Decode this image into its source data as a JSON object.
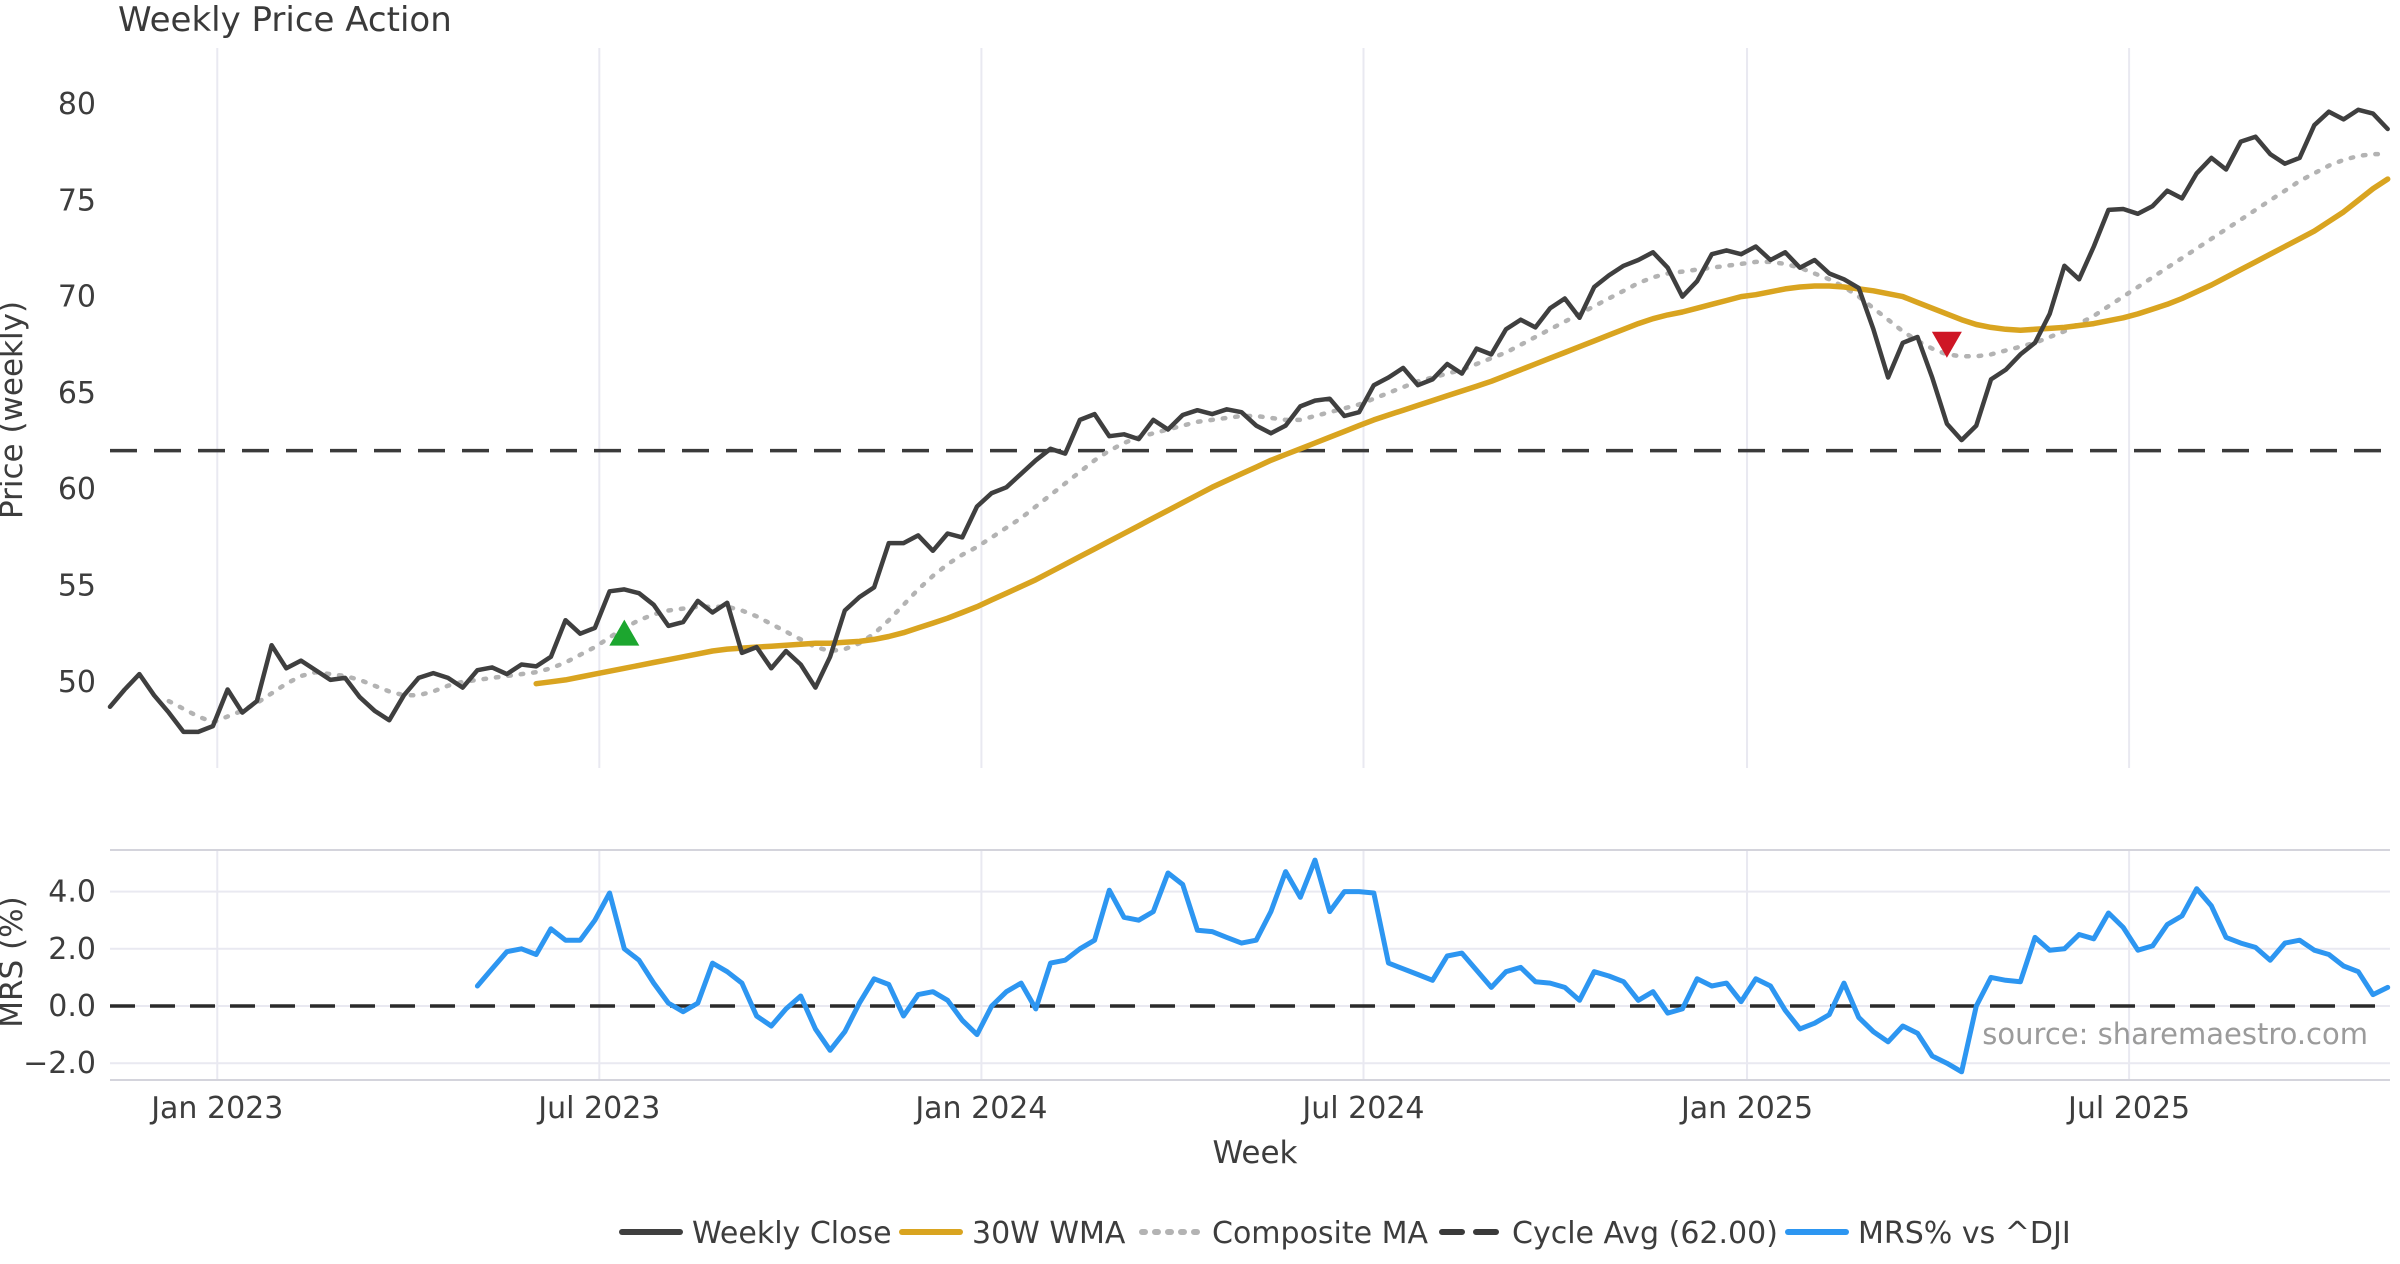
{
  "title": "Weekly Price Action",
  "source_note": "source: sharemaestro.com",
  "axes": {
    "price_label": "Price (weekly)",
    "mrs_label": "MRS (%)",
    "x_label": "Week",
    "x_tick_labels": [
      "Jan 2023",
      "Jul 2023",
      "Jan 2024",
      "Jul 2024",
      "Jan 2025",
      "Jul 2025"
    ],
    "x_tick_weeks": [
      7.3,
      33.3,
      59.3,
      85.3,
      111.4,
      137.4
    ],
    "price_ticks": [
      50,
      55,
      60,
      65,
      70,
      75,
      80
    ],
    "mrs_ticks": [
      -2.0,
      0.0,
      2.0,
      4.0
    ]
  },
  "colors": {
    "close": "#3f3f3f",
    "wma": "#d9a420",
    "composite": "#b3b3b3",
    "cycle": "#3a3a3a",
    "mrs": "#2d96f1",
    "buy_marker": "#1ca62f",
    "sell_marker": "#ce1625",
    "grid": "#e9e9f1",
    "source": "#9b9b9b"
  },
  "legend": [
    {
      "label": "Weekly Close",
      "series": "close",
      "style": "solid"
    },
    {
      "label": "30W WMA",
      "series": "wma",
      "style": "solid"
    },
    {
      "label": "Composite MA",
      "series": "composite",
      "style": "dotted"
    },
    {
      "label": "Cycle Avg (62.00)",
      "series": "cycle",
      "style": "dashed"
    },
    {
      "label": "MRS% vs ^DJI",
      "series": "mrs",
      "style": "solid"
    }
  ],
  "chart_data": [
    {
      "type": "line",
      "panel": "price",
      "title": "Weekly Price Action",
      "ylabel": "Price (weekly)",
      "ylim": [
        46.5,
        81.5
      ],
      "grid": "vertical-only",
      "cycle_avg": 62.0,
      "series": [
        {
          "name": "Weekly Close",
          "start_week": 0,
          "values": [
            48.7,
            49.6,
            50.4,
            49.3,
            48.4,
            47.4,
            47.4,
            47.7,
            49.6,
            48.4,
            49.0,
            51.9,
            50.7,
            51.1,
            50.6,
            50.1,
            50.2,
            49.2,
            48.5,
            48.0,
            49.3,
            50.2,
            50.45,
            50.2,
            49.7,
            50.6,
            50.75,
            50.4,
            50.9,
            50.8,
            51.3,
            53.2,
            52.5,
            52.8,
            54.7,
            54.8,
            54.6,
            54.0,
            52.9,
            53.1,
            54.2,
            53.6,
            54.1,
            51.5,
            51.8,
            50.7,
            51.6,
            50.9,
            49.7,
            51.3,
            53.7,
            54.4,
            54.9,
            57.2,
            57.2,
            57.6,
            56.8,
            57.7,
            57.5,
            59.1,
            59.8,
            60.1,
            60.8,
            61.5,
            62.1,
            61.85,
            63.6,
            63.9,
            62.75,
            62.85,
            62.6,
            63.6,
            63.1,
            63.85,
            64.1,
            63.9,
            64.15,
            64.0,
            63.3,
            62.9,
            63.3,
            64.3,
            64.6,
            64.7,
            63.8,
            64.0,
            65.4,
            65.8,
            66.3,
            65.4,
            65.7,
            66.5,
            66.0,
            67.3,
            67.0,
            68.3,
            68.8,
            68.4,
            69.4,
            69.9,
            68.9,
            70.5,
            71.1,
            71.6,
            71.9,
            72.3,
            71.5,
            70.0,
            70.8,
            72.2,
            72.4,
            72.2,
            72.6,
            71.9,
            72.3,
            71.5,
            71.9,
            71.2,
            70.9,
            70.45,
            68.3,
            65.8,
            67.6,
            67.9,
            65.8,
            63.4,
            62.55,
            63.3,
            65.7,
            66.2,
            67.0,
            67.6,
            69.1,
            71.6,
            70.9,
            72.6,
            74.5,
            74.55,
            74.3,
            74.7,
            75.5,
            75.1,
            76.4,
            77.2,
            76.6,
            78.05,
            78.3,
            77.4,
            76.9,
            77.2,
            78.9,
            79.6,
            79.2,
            79.7,
            79.5,
            78.7
          ]
        },
        {
          "name": "30W WMA",
          "start_week": 29,
          "values": [
            49.9,
            50.0,
            50.1,
            50.25,
            50.4,
            50.55,
            50.7,
            50.85,
            51.0,
            51.15,
            51.3,
            51.45,
            51.6,
            51.7,
            51.75,
            51.8,
            51.85,
            51.9,
            51.95,
            52.0,
            52.0,
            52.05,
            52.1,
            52.2,
            52.35,
            52.55,
            52.8,
            53.05,
            53.3,
            53.6,
            53.9,
            54.25,
            54.6,
            54.95,
            55.3,
            55.7,
            56.1,
            56.5,
            56.9,
            57.3,
            57.7,
            58.1,
            58.5,
            58.9,
            59.3,
            59.7,
            60.1,
            60.45,
            60.8,
            61.15,
            61.5,
            61.8,
            62.1,
            62.4,
            62.7,
            63.0,
            63.3,
            63.6,
            63.85,
            64.1,
            64.35,
            64.6,
            64.85,
            65.1,
            65.35,
            65.6,
            65.9,
            66.2,
            66.5,
            66.8,
            67.1,
            67.4,
            67.7,
            68.0,
            68.3,
            68.6,
            68.85,
            69.05,
            69.2,
            69.4,
            69.6,
            69.8,
            70.0,
            70.1,
            70.25,
            70.4,
            70.5,
            70.55,
            70.55,
            70.5,
            70.4,
            70.3,
            70.15,
            70.0,
            69.7,
            69.4,
            69.1,
            68.8,
            68.55,
            68.4,
            68.3,
            68.25,
            68.3,
            68.35,
            68.4,
            68.5,
            68.6,
            68.75,
            68.9,
            69.1,
            69.35,
            69.6,
            69.9,
            70.25,
            70.6,
            71.0,
            71.4,
            71.8,
            72.2,
            72.6,
            73.0,
            73.4,
            73.9,
            74.4,
            75.0,
            75.6,
            76.1
          ]
        },
        {
          "name": "Composite MA",
          "start_week": 4,
          "values": [
            49.0,
            48.6,
            48.2,
            47.9,
            48.2,
            48.5,
            48.9,
            49.4,
            49.9,
            50.3,
            50.5,
            50.4,
            50.3,
            50.1,
            49.8,
            49.5,
            49.3,
            49.3,
            49.5,
            49.8,
            50.0,
            50.1,
            50.2,
            50.3,
            50.4,
            50.5,
            50.7,
            51.0,
            51.4,
            51.8,
            52.3,
            52.8,
            53.2,
            53.5,
            53.7,
            53.8,
            53.9,
            53.9,
            53.9,
            53.7,
            53.4,
            53.0,
            52.6,
            52.2,
            51.8,
            51.6,
            51.7,
            52.0,
            52.5,
            53.2,
            54.0,
            54.8,
            55.5,
            56.1,
            56.6,
            57.0,
            57.5,
            58.0,
            58.5,
            59.1,
            59.7,
            60.3,
            60.9,
            61.5,
            62.0,
            62.4,
            62.7,
            62.9,
            63.1,
            63.3,
            63.5,
            63.6,
            63.7,
            63.8,
            63.8,
            63.7,
            63.6,
            63.6,
            63.8,
            64.0,
            64.2,
            64.4,
            64.7,
            65.0,
            65.3,
            65.6,
            65.8,
            66.0,
            66.2,
            66.5,
            66.8,
            67.1,
            67.5,
            67.9,
            68.3,
            68.7,
            69.1,
            69.5,
            69.9,
            70.3,
            70.7,
            71.0,
            71.2,
            71.3,
            71.4,
            71.5,
            71.6,
            71.7,
            71.8,
            71.8,
            71.7,
            71.5,
            71.2,
            70.9,
            70.5,
            70.0,
            69.4,
            68.8,
            68.2,
            67.7,
            67.3,
            67.0,
            66.9,
            66.9,
            67.0,
            67.2,
            67.4,
            67.6,
            67.9,
            68.2,
            68.6,
            69.0,
            69.5,
            70.0,
            70.5,
            71.0,
            71.5,
            72.0,
            72.5,
            73.0,
            73.5,
            74.0,
            74.5,
            75.0,
            75.5,
            76.0,
            76.4,
            76.8,
            77.1,
            77.3,
            77.4,
            77.4
          ]
        }
      ],
      "markers": [
        {
          "shape": "triangle-up",
          "week": 35,
          "price": 52.55,
          "meaning": "buy-signal"
        },
        {
          "shape": "triangle-down",
          "week": 125,
          "price": 67.5,
          "meaning": "sell-signal"
        }
      ]
    },
    {
      "type": "line",
      "panel": "mrs",
      "ylabel": "MRS (%)",
      "xlabel": "Week",
      "ylim": [
        -3.2,
        5.5
      ],
      "grid": "both",
      "zero_line": 0.0,
      "series": [
        {
          "name": "MRS% vs ^DJI",
          "start_week": 25,
          "values": [
            0.7,
            1.3,
            1.9,
            2.0,
            1.8,
            2.7,
            2.3,
            2.3,
            3.0,
            3.95,
            2.0,
            1.6,
            0.8,
            0.1,
            -0.2,
            0.1,
            1.5,
            1.2,
            0.8,
            -0.35,
            -0.7,
            -0.1,
            0.35,
            -0.8,
            -1.55,
            -0.9,
            0.1,
            0.95,
            0.75,
            -0.35,
            0.4,
            0.5,
            0.2,
            -0.5,
            -1.0,
            0.0,
            0.5,
            0.8,
            -0.1,
            1.5,
            1.6,
            2.0,
            2.3,
            4.05,
            3.1,
            3.0,
            3.3,
            4.65,
            4.25,
            2.65,
            2.6,
            2.4,
            2.2,
            2.3,
            3.3,
            4.7,
            3.8,
            5.1,
            3.3,
            4.0,
            4.0,
            3.95,
            1.5,
            1.3,
            1.1,
            0.9,
            1.75,
            1.85,
            1.25,
            0.65,
            1.2,
            1.35,
            0.85,
            0.8,
            0.65,
            0.2,
            1.2,
            1.05,
            0.85,
            0.2,
            0.5,
            -0.25,
            -0.1,
            0.95,
            0.7,
            0.8,
            0.15,
            0.95,
            0.7,
            -0.15,
            -0.8,
            -0.6,
            -0.3,
            0.8,
            -0.4,
            -0.9,
            -1.25,
            -0.7,
            -0.95,
            -1.75,
            -2.0,
            -2.3,
            0.0,
            1.0,
            0.9,
            0.85,
            2.4,
            1.95,
            2.0,
            2.5,
            2.35,
            3.25,
            2.75,
            1.95,
            2.1,
            2.85,
            3.15,
            4.1,
            3.5,
            2.4,
            2.2,
            2.05,
            1.6,
            2.2,
            2.3,
            1.95,
            1.8,
            1.4,
            1.2,
            0.4,
            0.65
          ]
        }
      ]
    }
  ]
}
